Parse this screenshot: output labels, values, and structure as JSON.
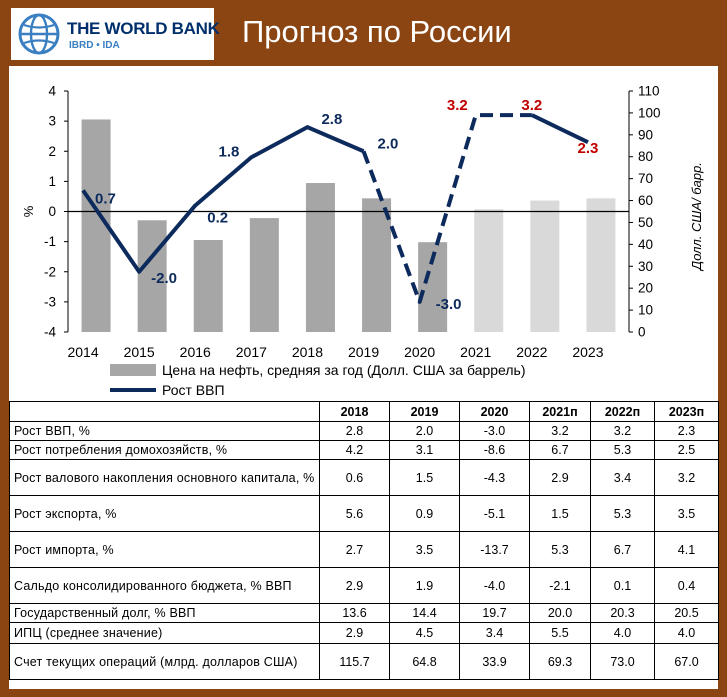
{
  "header": {
    "logo_name": "THE WORLD BANK",
    "logo_sub": "IBRD • IDA",
    "title": "Прогноз по России"
  },
  "colors": {
    "frame": "#8b4513",
    "bar_actual": "#a6a6a6",
    "bar_forecast": "#d9d9d9",
    "gdp_line": "#0d2a5c",
    "label_forecast": "#c00000"
  },
  "chart_data": {
    "type": "bar+line",
    "categories": [
      "2014",
      "2015",
      "2016",
      "2017",
      "2018",
      "2019",
      "2020",
      "2021",
      "2022",
      "2023"
    ],
    "series": [
      {
        "name": "Цена на нефть, средняя за год (Долл. США за баррель)",
        "axis": "right",
        "type": "bar",
        "values": [
          97,
          51,
          42,
          52,
          68,
          61,
          41,
          56,
          60,
          61
        ]
      },
      {
        "name": "Рост ВВП",
        "axis": "left",
        "type": "line",
        "values": [
          0.7,
          -2.0,
          0.2,
          1.8,
          2.8,
          2.0,
          -3.0,
          3.2,
          3.2,
          2.3
        ],
        "labels": [
          "0.7",
          "-2.0",
          "0.2",
          "1.8",
          "2.8",
          "2.0",
          "-3.0",
          "3.2",
          "3.2",
          "2.3"
        ]
      }
    ],
    "forecast_start": "2021",
    "y_left": {
      "label": "%",
      "min": -4,
      "max": 4,
      "ticks": [
        "4",
        "3",
        "2",
        "1",
        "0",
        "-1",
        "-2",
        "-3",
        "-4"
      ]
    },
    "y_right": {
      "label": "Долл. США/ барр.",
      "min": 0,
      "max": 110,
      "ticks": [
        "110",
        "100",
        "90",
        "80",
        "70",
        "60",
        "50",
        "40",
        "30",
        "20",
        "10",
        "0"
      ]
    },
    "legend": {
      "position": "bottom",
      "items": [
        "Цена на нефть, средняя за год (Долл. США за баррель)",
        "Рост ВВП"
      ]
    }
  },
  "table": {
    "headers": [
      "",
      "2018",
      "2019",
      "2020",
      "2021п",
      "2022п",
      "2023п"
    ],
    "rows": [
      {
        "label": "Рост ВВП, %",
        "values": [
          "2.8",
          "2.0",
          "-3.0",
          "3.2",
          "3.2",
          "2.3"
        ]
      },
      {
        "label": "Рост потребления домохозяйств, %",
        "values": [
          "4.2",
          "3.1",
          "-8.6",
          "6.7",
          "5.3",
          "2.5"
        ]
      },
      {
        "label": "Рост валового накопления основного капитала, %",
        "values": [
          "0.6",
          "1.5",
          "-4.3",
          "2.9",
          "3.4",
          "3.2"
        ]
      },
      {
        "label": "Рост экспорта, %",
        "values": [
          "5.6",
          "0.9",
          "-5.1",
          "1.5",
          "5.3",
          "3.5"
        ]
      },
      {
        "label": "Рост импорта, %",
        "values": [
          "2.7",
          "3.5",
          "-13.7",
          "5.3",
          "6.7",
          "4.1"
        ]
      },
      {
        "label": "Сальдо консолидированного бюджета, % ВВП",
        "values": [
          "2.9",
          "1.9",
          "-4.0",
          "-2.1",
          "0.1",
          "0.4"
        ]
      },
      {
        "label": "Государственный долг, % ВВП",
        "values": [
          "13.6",
          "14.4",
          "19.7",
          "20.0",
          "20.3",
          "20.5"
        ]
      },
      {
        "label": "ИПЦ (среднее значение)",
        "values": [
          "2.9",
          "4.5",
          "3.4",
          "5.5",
          "4.0",
          "4.0"
        ]
      },
      {
        "label": "Счет текущих операций (млрд. долларов США)",
        "values": [
          "115.7",
          "64.8",
          "33.9",
          "69.3",
          "73.0",
          "67.0"
        ]
      }
    ]
  }
}
